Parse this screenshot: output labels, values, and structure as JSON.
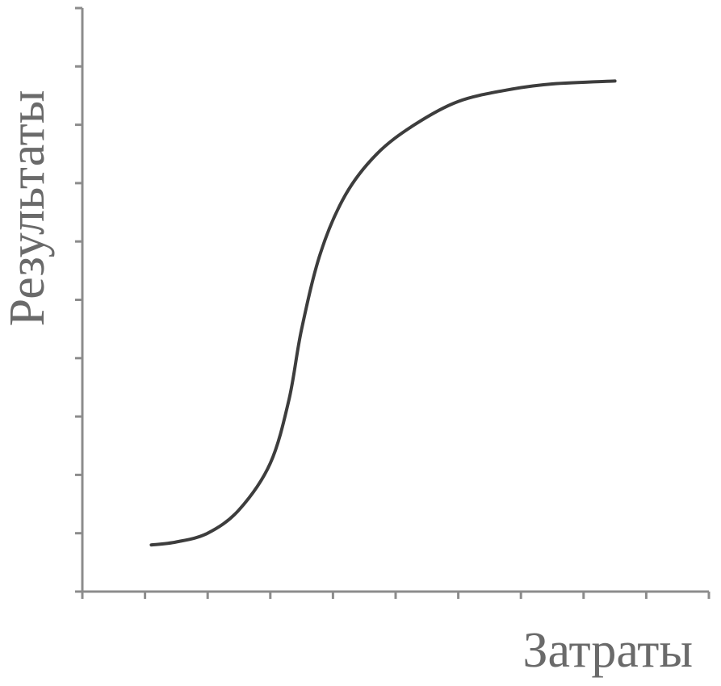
{
  "chart_data": {
    "type": "line",
    "title": "",
    "xlabel": "Затраты",
    "ylabel": "Результаты",
    "xlim": [
      0,
      10
    ],
    "ylim": [
      0,
      10
    ],
    "x_ticks": [
      0,
      1,
      2,
      3,
      4,
      5,
      6,
      7,
      8,
      9,
      10
    ],
    "y_ticks": [
      0,
      1,
      2,
      3,
      4,
      5,
      6,
      7,
      8,
      9,
      10
    ],
    "tick_labels_shown": false,
    "grid": false,
    "legend": "none",
    "series": [
      {
        "color": "#3d3d3d",
        "points": [
          {
            "x": 1.1,
            "y": 0.8
          },
          {
            "x": 1.5,
            "y": 0.85
          },
          {
            "x": 2.0,
            "y": 1.0
          },
          {
            "x": 2.5,
            "y": 1.4
          },
          {
            "x": 3.0,
            "y": 2.2
          },
          {
            "x": 3.3,
            "y": 3.3
          },
          {
            "x": 3.5,
            "y": 4.5
          },
          {
            "x": 3.8,
            "y": 5.8
          },
          {
            "x": 4.2,
            "y": 6.8
          },
          {
            "x": 4.7,
            "y": 7.5
          },
          {
            "x": 5.3,
            "y": 8.0
          },
          {
            "x": 6.0,
            "y": 8.4
          },
          {
            "x": 6.8,
            "y": 8.6
          },
          {
            "x": 7.5,
            "y": 8.7
          },
          {
            "x": 8.5,
            "y": 8.75
          }
        ]
      }
    ]
  }
}
